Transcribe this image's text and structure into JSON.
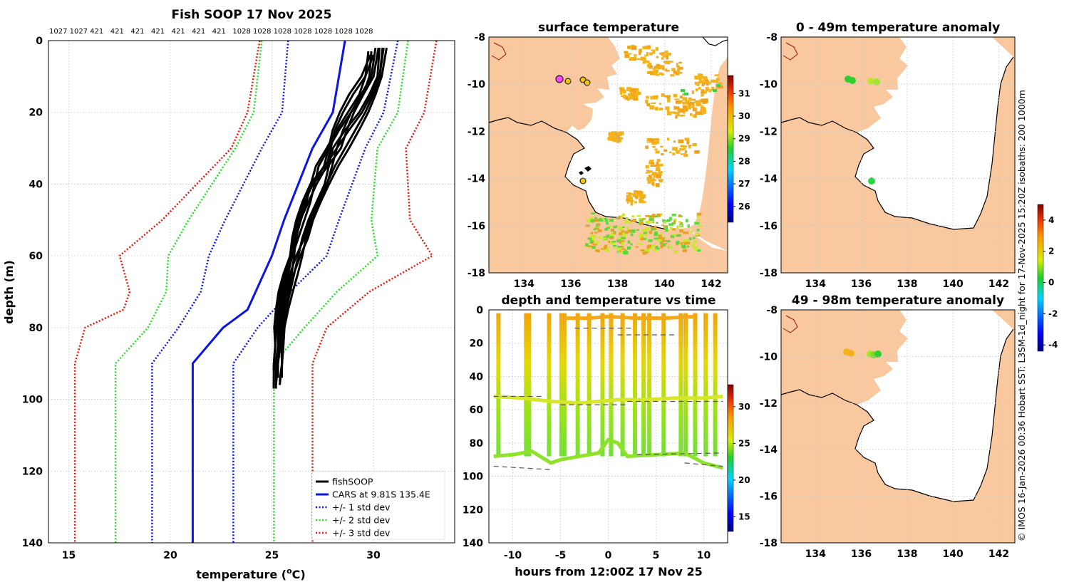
{
  "chart_data": [
    {
      "id": "profile",
      "type": "line",
      "title": "Fish SOOP 17 Nov 2025",
      "xlabel": "temperature (",
      "xlabel_unit": "o",
      "xlabel_tail": "C)",
      "ylabel": "depth (m)",
      "xlim": [
        14,
        34
      ],
      "ylim": [
        140,
        0
      ],
      "xticks": [
        15,
        20,
        25,
        30
      ],
      "yticks": [
        0,
        20,
        40,
        60,
        80,
        100,
        120,
        140
      ],
      "top_labels": [
        "1027",
        "1027",
        "421",
        "421",
        "421",
        "421",
        "421",
        "421",
        "421",
        "1028",
        "1028",
        "1028",
        "1028",
        "1028",
        "1028",
        "1028"
      ],
      "cars": {
        "depth": [
          0,
          20,
          30,
          50,
          60,
          75,
          80,
          90,
          140
        ],
        "temp": [
          28.6,
          28.0,
          27.0,
          25.6,
          25.0,
          23.8,
          22.6,
          21.1,
          21.1
        ]
      },
      "std1_lo": {
        "depth": [
          0,
          20,
          30,
          50,
          60,
          70,
          80,
          90,
          140
        ],
        "temp": [
          25.8,
          25.5,
          24.5,
          22.7,
          21.9,
          21.5,
          20.4,
          19.1,
          19.1
        ]
      },
      "std1_hi": {
        "depth": [
          0,
          20,
          30,
          50,
          60,
          70,
          80,
          90,
          140
        ],
        "temp": [
          31.2,
          30.5,
          29.6,
          28.3,
          27.7,
          25.9,
          24.3,
          23.1,
          23.1
        ]
      },
      "std2_lo": {
        "depth": [
          0,
          20,
          30,
          50,
          60,
          70,
          80,
          90,
          140
        ],
        "temp": [
          24.5,
          24.1,
          23.2,
          20.9,
          19.9,
          19.8,
          18.9,
          17.3,
          17.3
        ]
      },
      "std2_hi": {
        "depth": [
          0,
          20,
          30,
          50,
          60,
          70,
          80,
          90,
          140
        ],
        "temp": [
          31.7,
          31.2,
          30.2,
          29.9,
          30.2,
          28.2,
          26.6,
          25.1,
          25.1
        ]
      },
      "std3_lo": {
        "depth": [
          0,
          20,
          30,
          50,
          60,
          70,
          75,
          80,
          90,
          140
        ],
        "temp": [
          24.4,
          23.8,
          23.0,
          19.6,
          17.5,
          18.0,
          17.7,
          15.8,
          15.3,
          15.3
        ]
      },
      "std3_hi": {
        "depth": [
          0,
          20,
          30,
          50,
          60,
          70,
          80,
          90,
          140
        ],
        "temp": [
          33.1,
          32.5,
          31.6,
          31.8,
          32.9,
          29.8,
          27.7,
          27.0,
          27.0
        ]
      },
      "fish_profiles": [
        {
          "depth": [
            2,
            10,
            15,
            20,
            25,
            30,
            35,
            40,
            45,
            50,
            55,
            60,
            65,
            70,
            75,
            80,
            85,
            90,
            95
          ],
          "temp": [
            30.3,
            30.2,
            29.8,
            29.3,
            28.6,
            28.0,
            27.8,
            27.6,
            27.2,
            26.8,
            26.5,
            26.3,
            26.1,
            25.9,
            25.7,
            25.5,
            25.4,
            25.3,
            25.2
          ]
        },
        {
          "depth": [
            3,
            10,
            15,
            20,
            25,
            30,
            35,
            40,
            45,
            50,
            55,
            60,
            65,
            70,
            75,
            80,
            85,
            90,
            97
          ],
          "temp": [
            29.9,
            29.8,
            29.5,
            28.9,
            28.3,
            27.8,
            27.3,
            27.1,
            26.9,
            26.6,
            26.3,
            26.0,
            25.8,
            25.6,
            25.5,
            25.4,
            25.3,
            25.2,
            25.2
          ]
        },
        {
          "depth": [
            2,
            10,
            15,
            20,
            25,
            30,
            35,
            40,
            45,
            50,
            55,
            60,
            65,
            70,
            75,
            80,
            85,
            90,
            94
          ],
          "temp": [
            30.5,
            30.3,
            30.0,
            29.6,
            29.1,
            28.6,
            28.1,
            27.7,
            27.3,
            26.9,
            26.6,
            26.2,
            25.9,
            25.7,
            25.6,
            25.5,
            25.4,
            25.3,
            25.3
          ]
        },
        {
          "depth": [
            4,
            10,
            15,
            20,
            25,
            30,
            35,
            40,
            45,
            50,
            55,
            60,
            65,
            70,
            75,
            80,
            85,
            90,
            92
          ],
          "temp": [
            30.0,
            29.6,
            29.0,
            28.5,
            28.1,
            27.9,
            27.7,
            27.2,
            26.8,
            26.4,
            26.2,
            26.0,
            25.7,
            25.5,
            25.4,
            25.3,
            25.3,
            25.2,
            25.2
          ]
        },
        {
          "depth": [
            2,
            10,
            15,
            20,
            25,
            30,
            35,
            40,
            45,
            50,
            55,
            60,
            65,
            70,
            75,
            80,
            85,
            90,
            96
          ],
          "temp": [
            30.1,
            29.9,
            29.4,
            28.9,
            28.5,
            28.2,
            27.6,
            26.9,
            26.5,
            26.2,
            26.0,
            25.9,
            25.8,
            25.6,
            25.5,
            25.4,
            25.3,
            25.3,
            25.2
          ]
        }
      ],
      "legend": [
        "fishSOOP",
        "CARS at 9.81S 135.4E",
        "+/- 1 std dev",
        "+/- 2 std dev",
        "+/- 3 std dev"
      ],
      "colors": {
        "fish": "#000000",
        "cars": "#0a14e6",
        "std1": "#0a14e6",
        "std2": "#22e022",
        "std3": "#e8150c"
      }
    },
    {
      "id": "surface_map",
      "type": "heatmap",
      "title": "surface temperature",
      "xticks": [
        134,
        136,
        138,
        140,
        142
      ],
      "yticks": [
        -8,
        -10,
        -12,
        -14,
        -16,
        -18
      ],
      "colorbar_ticks": [
        31,
        30,
        29,
        28,
        27,
        26
      ],
      "colorbar_range": [
        25.3,
        31.8
      ]
    },
    {
      "id": "time_series",
      "type": "scatter",
      "title": "depth and temperature vs time",
      "xlabel": "hours from 12:00Z 17 Nov 25",
      "xticks": [
        -10,
        -5,
        0,
        5,
        10
      ],
      "xlim": [
        -12.5,
        12.5
      ],
      "yticks": [
        0,
        20,
        40,
        60,
        80,
        100,
        120,
        140
      ],
      "ylim": [
        140,
        0
      ],
      "colorbar_ticks": [
        30,
        25,
        20,
        15
      ],
      "colorbar_range": [
        13,
        33
      ]
    },
    {
      "id": "anomaly_0_49",
      "type": "heatmap",
      "title": "0 - 49m temperature anomaly",
      "xticks": [
        134,
        136,
        138,
        140,
        142
      ],
      "yticks": [
        -8,
        -10,
        -12,
        -14,
        -16,
        -18
      ]
    },
    {
      "id": "anomaly_49_98",
      "type": "heatmap",
      "title": "49 - 98m temperature anomaly",
      "xticks": [
        134,
        136,
        138,
        140,
        142
      ],
      "yticks": [
        -8,
        -10,
        -12,
        -14,
        -16,
        -18
      ],
      "colorbar_ticks": [
        4,
        2,
        0,
        -2,
        -4
      ],
      "colorbar_range": [
        -4.4,
        5
      ]
    }
  ],
  "credit": "© IMOS 16-Jan-2026 00:36 Hobart SST: L3SM-1d_night for 17-Nov-2025 15:20Z isobaths: 200  1000m"
}
